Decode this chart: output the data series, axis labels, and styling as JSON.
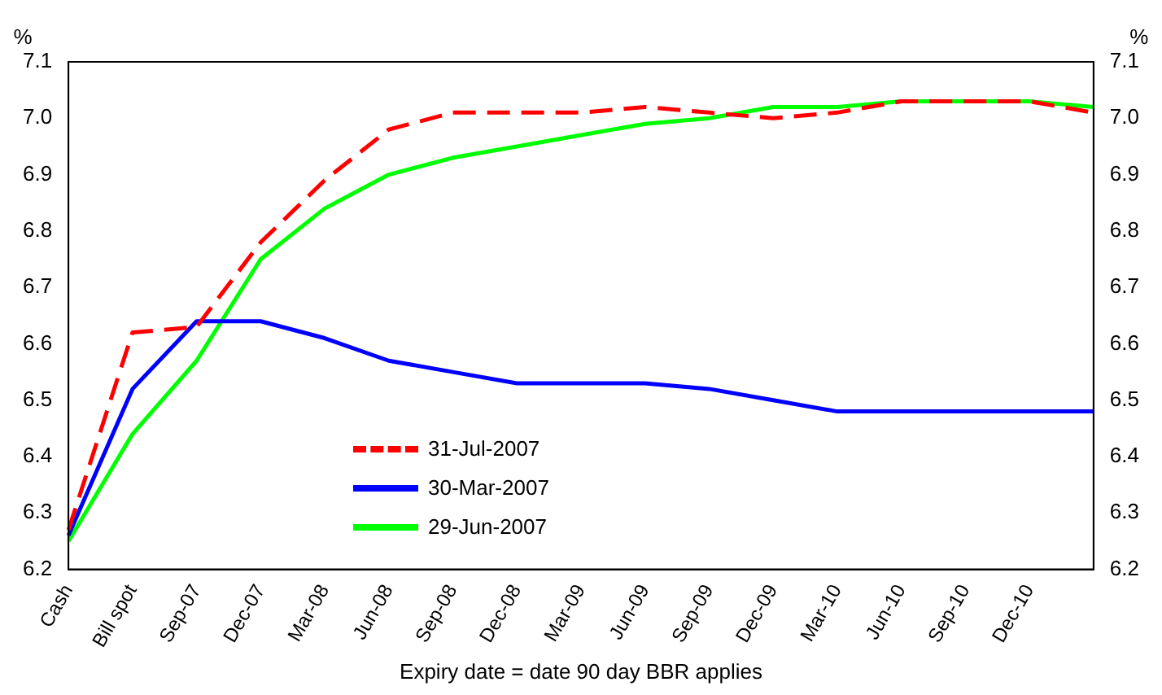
{
  "chart_data": {
    "type": "line",
    "xlabel": "Expiry date = date 90 day BBR applies",
    "ylabel": "%",
    "y2label": "%",
    "categories": [
      "Cash",
      "Bill spot",
      "Sep-07",
      "Dec-07",
      "Mar-08",
      "Jun-08",
      "Sep-08",
      "Dec-08",
      "Mar-09",
      "Jun-09",
      "Sep-09",
      "Dec-09",
      "Mar-10",
      "Jun-10",
      "Sep-10",
      "Dec-10",
      null
    ],
    "series": [
      {
        "name": "31-Jul-2007",
        "color": "#ff0000",
        "line_style": "dashed",
        "values": [
          6.27,
          6.62,
          6.63,
          6.78,
          6.89,
          6.98,
          7.01,
          7.01,
          7.01,
          7.02,
          7.01,
          7.0,
          7.01,
          7.03,
          7.03,
          7.03,
          7.01
        ]
      },
      {
        "name": "30-Mar-2007",
        "color": "#0000ff",
        "line_style": "solid",
        "values": [
          6.26,
          6.52,
          6.64,
          6.64,
          6.61,
          6.57,
          6.55,
          6.53,
          6.53,
          6.53,
          6.52,
          6.5,
          6.48,
          6.48,
          6.48,
          6.48,
          6.48
        ]
      },
      {
        "name": "29-Jun-2007",
        "color": "#00ff00",
        "line_style": "solid",
        "values": [
          6.25,
          6.44,
          6.57,
          6.75,
          6.84,
          6.9,
          6.93,
          6.95,
          6.97,
          6.99,
          7.0,
          7.02,
          7.02,
          7.03,
          7.03,
          7.03,
          7.02
        ]
      }
    ],
    "ylim": [
      6.2,
      7.1
    ],
    "yticks": [
      6.2,
      6.3,
      6.4,
      6.5,
      6.6,
      6.7,
      6.8,
      6.9,
      {
        "value": 7,
        "label": "7.0"
      },
      7.1
    ],
    "y2lim": [
      6.2,
      7.1
    ],
    "y2ticks": [
      6.2,
      6.3,
      6.4,
      6.5,
      6.6,
      6.7,
      6.8,
      6.9,
      {
        "value": 7,
        "label": "7.0"
      },
      7.1
    ],
    "grid": false,
    "legend": "bottom",
    "marker": "none"
  }
}
